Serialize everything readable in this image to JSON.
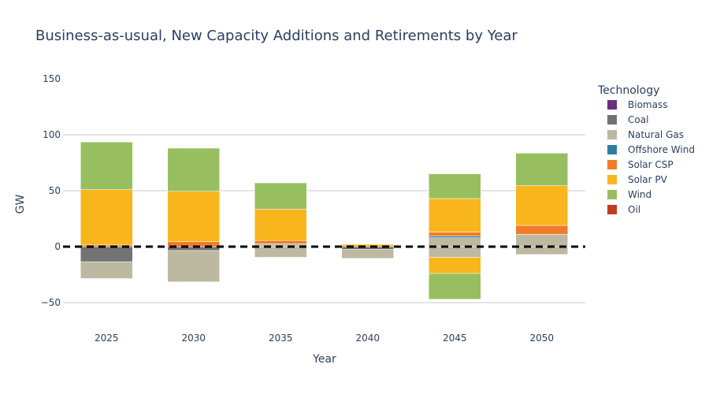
{
  "chart_data": {
    "type": "bar",
    "barmode": "relative",
    "title": "Business-as-usual, New Capacity Additions and Retirements by Year",
    "xlabel": "Year",
    "ylabel": "GW",
    "categories": [
      "2025",
      "2030",
      "2035",
      "2040",
      "2045",
      "2050"
    ],
    "yticks": [
      -50,
      0,
      50,
      100,
      150
    ],
    "ylim": [
      -67,
      160
    ],
    "grid": true,
    "zero_line": "dashed-black",
    "legend": {
      "title": "Technology",
      "placement": "right"
    },
    "series": [
      {
        "name": "Biomass",
        "color": "#6b2f7e",
        "values": [
          0,
          0,
          0,
          0,
          0,
          0
        ]
      },
      {
        "name": "Coal",
        "color": "#737373",
        "values": [
          -13.5,
          -3.5,
          0,
          -2.5,
          0,
          0
        ]
      },
      {
        "name": "Natural Gas",
        "color": "#bdb8a0",
        "values": [
          -15,
          -28,
          2.5,
          -8,
          8,
          11
        ]
      },
      {
        "name": "Offshore Wind",
        "color": "#2e7f9e",
        "values": [
          0,
          0,
          0,
          0,
          1.5,
          0
        ]
      },
      {
        "name": "Solar CSP",
        "color": "#f07c28",
        "values": [
          1.5,
          4.5,
          3,
          0,
          3.5,
          8
        ]
      },
      {
        "name": "Solar PV",
        "color": "#f8b51c",
        "values": [
          49.5,
          45,
          28,
          2,
          30,
          35.5
        ]
      },
      {
        "name": "Wind",
        "color": "#97bf5f",
        "values": [
          42.5,
          38.5,
          23.5,
          0,
          22,
          29
        ]
      },
      {
        "name": "Oil",
        "color": "#c33a1f",
        "values": [
          0,
          0,
          0,
          0,
          0,
          0
        ]
      }
    ],
    "retirement_extra": [
      {
        "series": "Natural Gas",
        "values": [
          0,
          0,
          -9.5,
          0,
          -9.5,
          -7
        ]
      },
      {
        "series": "Solar PV",
        "values": [
          0,
          0,
          0,
          0,
          -14.5,
          0
        ]
      },
      {
        "series": "Wind",
        "values": [
          0,
          0,
          0,
          0,
          -23,
          0
        ]
      }
    ]
  }
}
